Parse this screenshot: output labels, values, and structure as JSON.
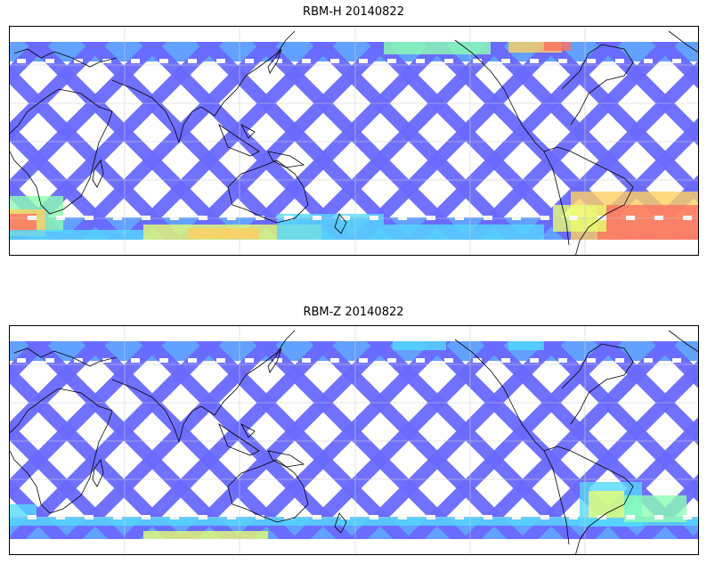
{
  "panels": [
    {
      "title": "RBM-H 20140822",
      "hotspots": "high"
    },
    {
      "title": "RBM-Z 20140822",
      "hotspots": "low"
    }
  ],
  "projection": "equirectangular",
  "longitude_center": "Indian Ocean / Pacific",
  "latitude_coverage": "approx 70N to 70S",
  "grid": true,
  "colormap": [
    "#6a6aff",
    "#5a9cff",
    "#55d8ff",
    "#8cffb0",
    "#e8ff70",
    "#ffd060",
    "#ff7060"
  ],
  "coastline_color": "#000000"
}
